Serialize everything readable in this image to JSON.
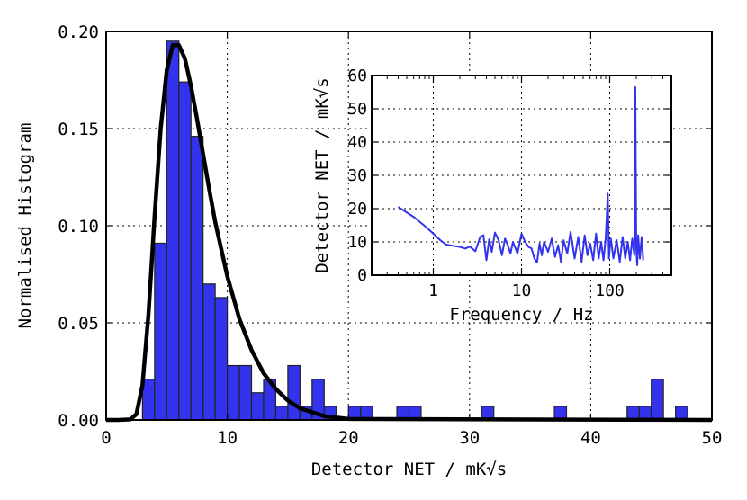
{
  "chart_data": [
    {
      "type": "bar",
      "xlabel": "Detector NET / mK√s",
      "ylabel": "Normalised Histogram",
      "xlim": [
        0,
        50
      ],
      "ylim": [
        0,
        0.2
      ],
      "grid": true,
      "xticks": [
        0,
        10,
        20,
        30,
        40,
        50
      ],
      "xtick_labels": [
        "0",
        "10",
        "20",
        "30",
        "40",
        "50"
      ],
      "yticks": [
        0,
        0.05,
        0.1,
        0.15,
        0.2
      ],
      "ytick_labels": [
        "0.00",
        "0.05",
        "0.10",
        "0.15",
        "0.20"
      ],
      "bar_color": "#3333ee",
      "bin_width": 1.0,
      "bins": [
        {
          "x0": 3.0,
          "y": 0.021
        },
        {
          "x0": 4.0,
          "y": 0.091
        },
        {
          "x0": 5.0,
          "y": 0.195
        },
        {
          "x0": 6.0,
          "y": 0.174
        },
        {
          "x0": 7.0,
          "y": 0.146
        },
        {
          "x0": 8.0,
          "y": 0.07
        },
        {
          "x0": 9.0,
          "y": 0.063
        },
        {
          "x0": 10.0,
          "y": 0.028
        },
        {
          "x0": 11.0,
          "y": 0.028
        },
        {
          "x0": 12.0,
          "y": 0.014
        },
        {
          "x0": 13.0,
          "y": 0.021
        },
        {
          "x0": 14.0,
          "y": 0.007
        },
        {
          "x0": 15.0,
          "y": 0.028
        },
        {
          "x0": 16.0,
          "y": 0.007
        },
        {
          "x0": 17.0,
          "y": 0.021
        },
        {
          "x0": 18.0,
          "y": 0.007
        },
        {
          "x0": 20.0,
          "y": 0.007
        },
        {
          "x0": 21.0,
          "y": 0.007
        },
        {
          "x0": 24.0,
          "y": 0.007
        },
        {
          "x0": 25.0,
          "y": 0.007
        },
        {
          "x0": 31.0,
          "y": 0.007
        },
        {
          "x0": 37.0,
          "y": 0.007
        },
        {
          "x0": 43.0,
          "y": 0.007
        },
        {
          "x0": 44.0,
          "y": 0.007
        },
        {
          "x0": 45.0,
          "y": 0.021
        },
        {
          "x0": 47.0,
          "y": 0.007
        }
      ],
      "fit_curve": {
        "type": "line",
        "color": "#000000",
        "x": [
          0,
          1,
          2,
          2.5,
          3,
          3.5,
          4,
          4.5,
          5,
          5.5,
          6,
          6.5,
          7,
          7.5,
          8,
          8.5,
          9,
          10,
          11,
          12,
          13,
          14,
          15,
          16,
          17,
          18,
          20,
          50
        ],
        "y": [
          0,
          0,
          0.0003,
          0.003,
          0.018,
          0.055,
          0.105,
          0.15,
          0.18,
          0.193,
          0.193,
          0.186,
          0.172,
          0.155,
          0.137,
          0.119,
          0.102,
          0.074,
          0.052,
          0.036,
          0.024,
          0.016,
          0.01,
          0.006,
          0.004,
          0.002,
          0.0005,
          0
        ]
      }
    },
    {
      "type": "line",
      "xlabel": "Frequency / Hz",
      "ylabel": "Detector NET / mK√s",
      "xscale": "log",
      "xlim": [
        0.2,
        500
      ],
      "ylim": [
        0,
        60
      ],
      "grid": true,
      "xticks": [
        1,
        10,
        100
      ],
      "xtick_labels": [
        "1",
        "10",
        "100"
      ],
      "yticks": [
        0,
        10,
        20,
        30,
        40,
        50,
        60
      ],
      "ytick_labels": [
        "0",
        "10",
        "20",
        "30",
        "40",
        "50",
        "60"
      ],
      "line_color": "#3333ee",
      "x": [
        0.4,
        0.6,
        0.8,
        1.0,
        1.2,
        1.4,
        1.7,
        2.0,
        2.3,
        2.6,
        3.0,
        3.4,
        3.7,
        4.0,
        4.3,
        4.6,
        5.0,
        5.5,
        6.0,
        6.5,
        7.0,
        7.5,
        8.0,
        9.0,
        10.0,
        11.0,
        12.0,
        13.0,
        14.0,
        15.0,
        16.0,
        17.0,
        18.0,
        20.0,
        22.0,
        24.0,
        26.0,
        28.0,
        30.0,
        33.0,
        36.0,
        40.0,
        44.0,
        48.0,
        52.0,
        56.0,
        60.0,
        65.0,
        70.0,
        75.0,
        80.0,
        85.0,
        90.0,
        95.0,
        98.0,
        100.0,
        103.0,
        110.0,
        120.0,
        130.0,
        140.0,
        150.0,
        160.0,
        170.0,
        180.0,
        190.0,
        195.0,
        200.0,
        205.0,
        210.0,
        220.0,
        230.0,
        240.0
      ],
      "y": [
        20.5,
        17.5,
        14.8,
        12.5,
        10.5,
        9.2,
        8.8,
        8.5,
        8.0,
        8.6,
        7.2,
        11.5,
        12.0,
        4.5,
        10.8,
        7.0,
        12.8,
        10.5,
        6.0,
        11.0,
        9.0,
        6.5,
        10.0,
        6.5,
        12.5,
        10.0,
        8.5,
        8.0,
        5.0,
        3.8,
        9.5,
        6.0,
        10.0,
        7.0,
        11.0,
        5.5,
        9.0,
        4.0,
        10.5,
        6.5,
        13.0,
        5.0,
        11.5,
        4.0,
        12.0,
        6.0,
        9.5,
        4.5,
        12.5,
        5.0,
        10.0,
        4.5,
        11.0,
        24.5,
        5.0,
        8.0,
        11.0,
        5.0,
        10.5,
        4.0,
        11.5,
        5.0,
        10.0,
        4.5,
        11.0,
        6.0,
        56.5,
        8.0,
        3.0,
        12.0,
        5.0,
        11.5,
        4.5
      ]
    }
  ]
}
